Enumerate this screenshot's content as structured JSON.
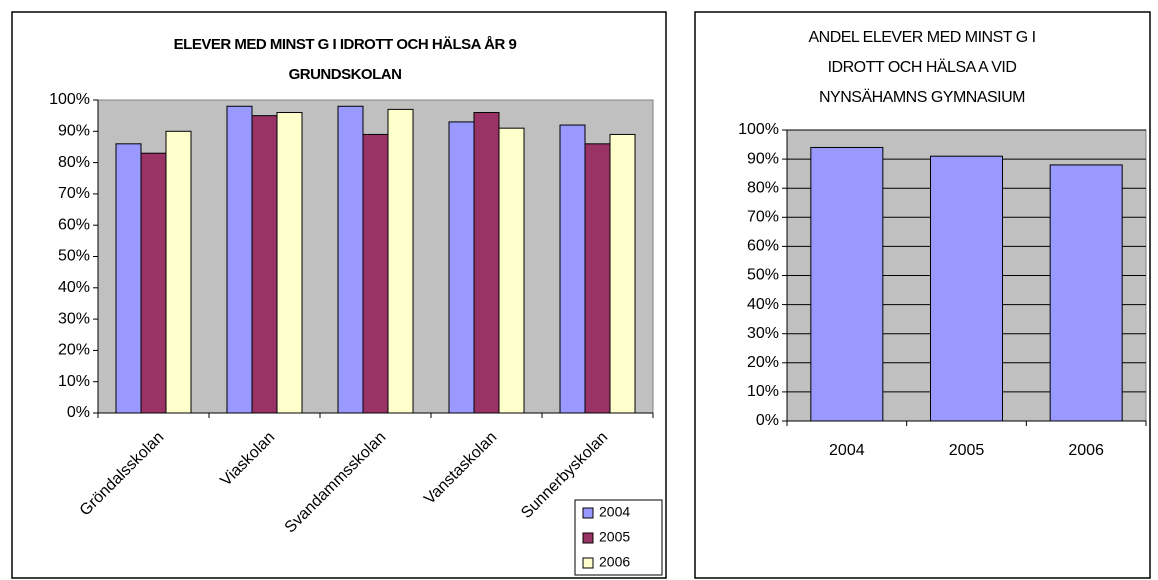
{
  "chart_data": [
    {
      "type": "bar",
      "title": [
        "ELEVER MED MINST G I IDROTT OCH HÄLSA ÅR 9",
        "GRUNDSKOLAN"
      ],
      "categories": [
        "Gröndalsskolan",
        "Viaskolan",
        "Svandammsskolan",
        "Vanstaskolan",
        "Sunnerbyskolan"
      ],
      "series": [
        {
          "name": "2004",
          "color": "#9999ff",
          "values": [
            86,
            98,
            98,
            93,
            92
          ]
        },
        {
          "name": "2005",
          "color": "#993366",
          "values": [
            83,
            95,
            89,
            96,
            86
          ]
        },
        {
          "name": "2006",
          "color": "#ffffcc",
          "values": [
            90,
            96,
            97,
            91,
            89
          ]
        }
      ],
      "ylim": [
        0,
        100
      ],
      "yticks": [
        {
          "value": 0,
          "label": "0%"
        },
        {
          "value": 10,
          "label": "10%"
        },
        {
          "value": 20,
          "label": "20%"
        },
        {
          "value": 30,
          "label": "30%"
        },
        {
          "value": 40,
          "label": "40%"
        },
        {
          "value": 50,
          "label": "50%"
        },
        {
          "value": 60,
          "label": "60%"
        },
        {
          "value": 70,
          "label": "70%"
        },
        {
          "value": 80,
          "label": "80%"
        },
        {
          "value": 90,
          "label": "90%"
        },
        {
          "value": 100,
          "label": "100%"
        }
      ],
      "grid": false,
      "legend": "lower right"
    },
    {
      "type": "bar",
      "title": [
        "ANDEL ELEVER MED MINST G I",
        "IDROTT OCH HÄLSA A VID",
        "NYNSÄHAMNS GYMNASIUM"
      ],
      "categories": [
        "2004",
        "2005",
        "2006"
      ],
      "series": [
        {
          "color": "#9999ff",
          "values": [
            94,
            91,
            88
          ]
        }
      ],
      "ylim": [
        0,
        100
      ],
      "yticks": [
        {
          "value": 0,
          "label": "0%"
        },
        {
          "value": 10,
          "label": "10%"
        },
        {
          "value": 20,
          "label": "20%"
        },
        {
          "value": 30,
          "label": "30%"
        },
        {
          "value": 40,
          "label": "40%"
        },
        {
          "value": 50,
          "label": "50%"
        },
        {
          "value": 60,
          "label": "60%"
        },
        {
          "value": 70,
          "label": "70%"
        },
        {
          "value": 80,
          "label": "80%"
        },
        {
          "value": 90,
          "label": "90%"
        },
        {
          "value": 100,
          "label": "100%"
        }
      ],
      "grid": true
    }
  ]
}
